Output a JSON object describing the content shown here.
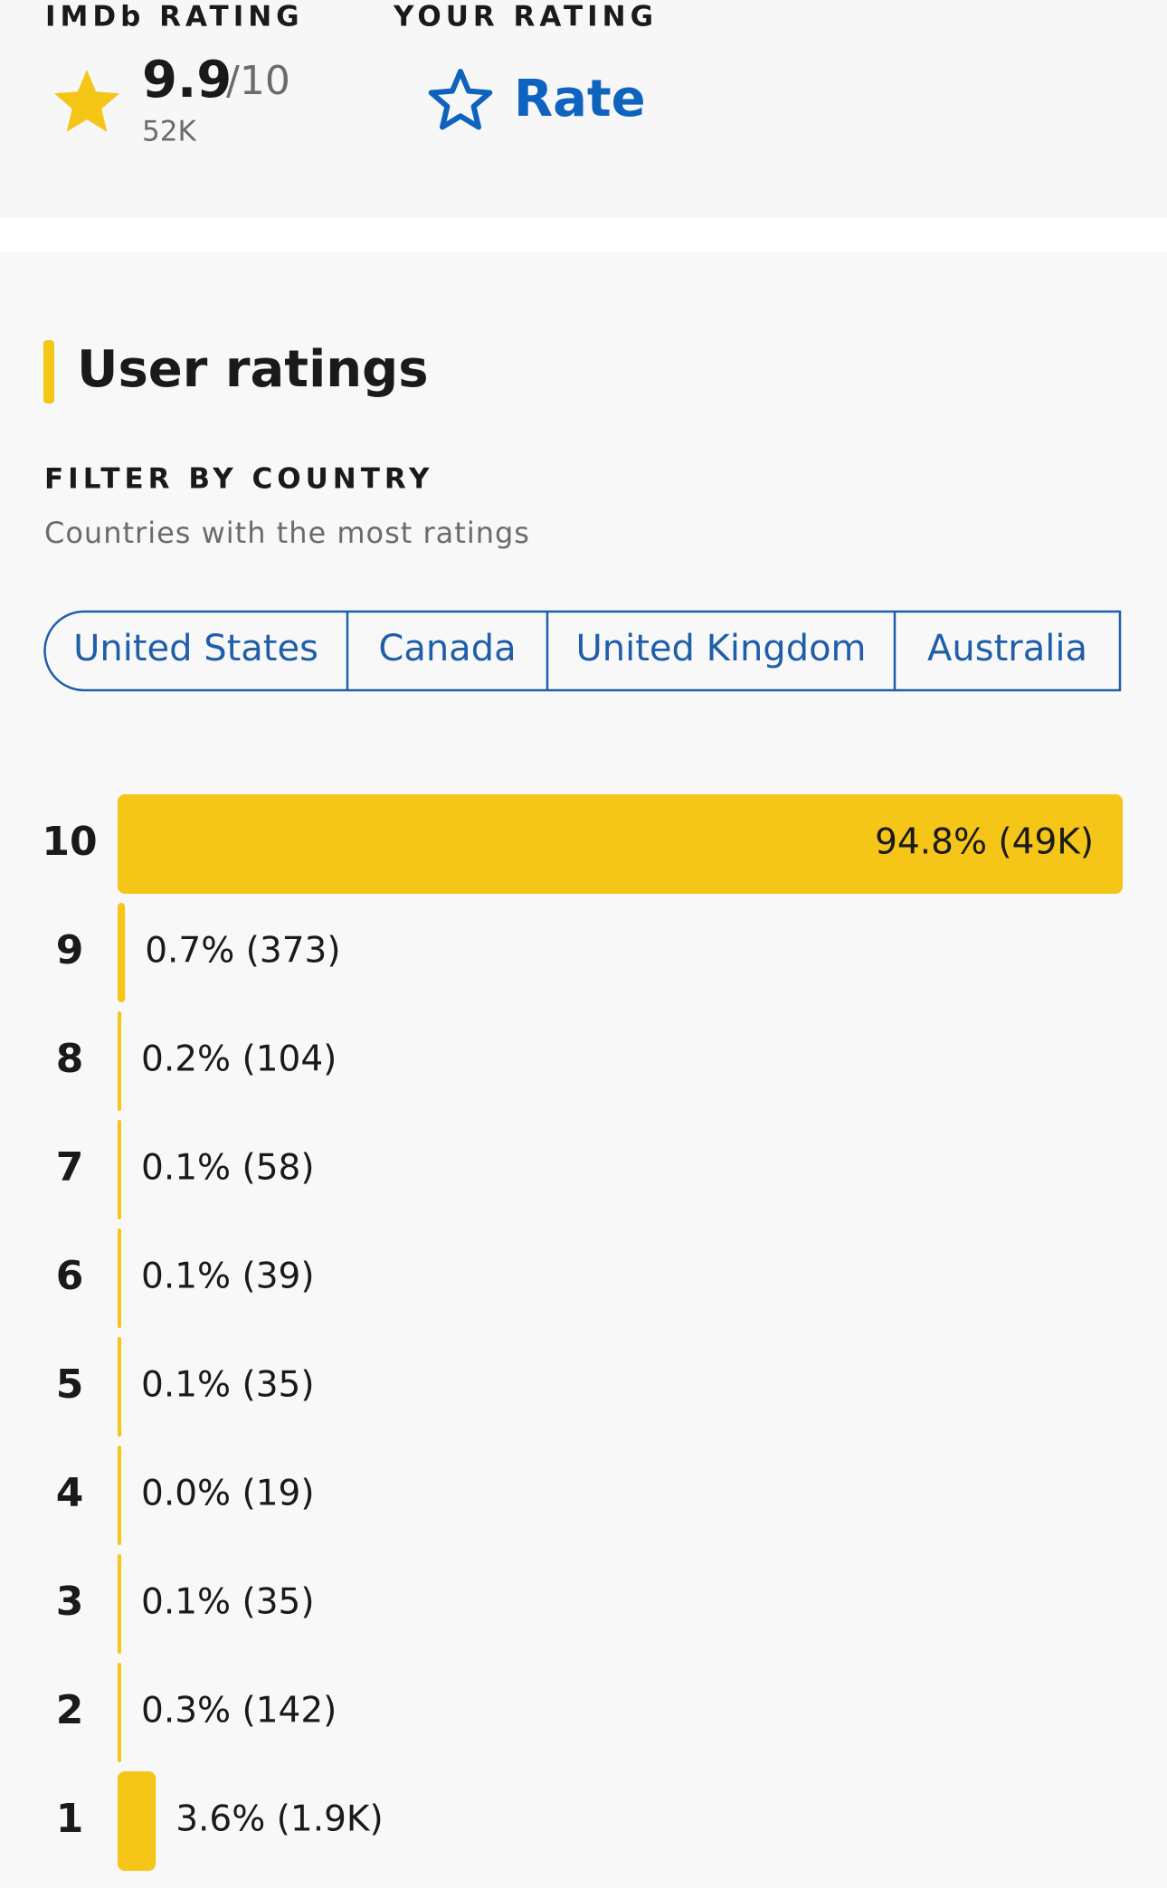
{
  "header": {
    "imdb_rating_label": "IMDb RATING",
    "rating": "9.9",
    "rating_scale": "/10",
    "rating_count": "52K",
    "your_rating_label": "YOUR RATING",
    "rate_button": "Rate"
  },
  "section": {
    "title": "User ratings",
    "filter_label": "FILTER BY COUNTRY",
    "filter_subtitle": "Countries with the most ratings",
    "countries": [
      "United States",
      "Canada",
      "United Kingdom",
      "Australia"
    ]
  },
  "chart_data": {
    "type": "bar",
    "orientation": "horizontal",
    "categories": [
      "10",
      "9",
      "8",
      "7",
      "6",
      "5",
      "4",
      "3",
      "2",
      "1"
    ],
    "values": [
      94.8,
      0.7,
      0.2,
      0.1,
      0.1,
      0.1,
      0.0,
      0.1,
      0.3,
      3.6
    ],
    "value_labels": [
      "94.8% (49K)",
      "0.7% (373)",
      "0.2% (104)",
      "0.1% (58)",
      "0.1% (39)",
      "0.1% (35)",
      "0.0% (19)",
      "0.1% (35)",
      "0.3% (142)",
      "3.6% (1.9K)"
    ],
    "color": "#f5c518",
    "xlim": [
      0,
      100
    ]
  }
}
